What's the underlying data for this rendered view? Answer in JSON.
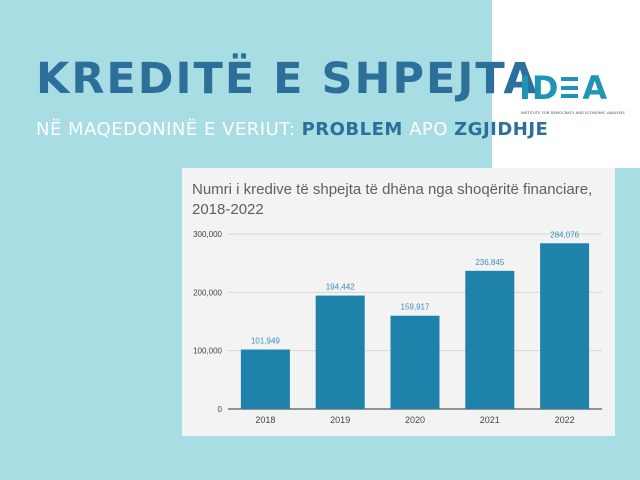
{
  "header": {
    "title": "KREDITË E SHPEJTA",
    "subtitle": {
      "part1": "NË MAQEDONINË E VERIUT: ",
      "highlight1": "PROBLEM",
      "part2": " APO ",
      "highlight2": "ZGJIDHJE",
      "part3": "?"
    }
  },
  "logo": {
    "text": "IDEA",
    "tagline": "INSTITUTE FOR DEMOCRACY AND ECONOMIC ANALYSIS"
  },
  "colors": {
    "background": "#a8dde4",
    "title": "#2b6f9a",
    "bar": "#1f82aa",
    "data_label": "#3a8fbf",
    "logo": "#1f95b5"
  },
  "chart_data": {
    "type": "bar",
    "title": "Numri i kredive të shpejta të dhëna nga shoqëritë financiare, 2018-2022",
    "categories": [
      "2018",
      "2019",
      "2020",
      "2021",
      "2022"
    ],
    "values": [
      101949,
      194442,
      159917,
      236845,
      284076
    ],
    "value_labels": [
      "101,949",
      "194,442",
      "159,917",
      "236,845",
      "284,076"
    ],
    "y_ticks": [
      0,
      100000,
      200000,
      300000
    ],
    "y_tick_labels": [
      "0",
      "100,000",
      "200,000",
      "300,000"
    ],
    "ylim": [
      0,
      300000
    ],
    "xlabel": "",
    "ylabel": "",
    "grid": true,
    "legend": "none"
  }
}
